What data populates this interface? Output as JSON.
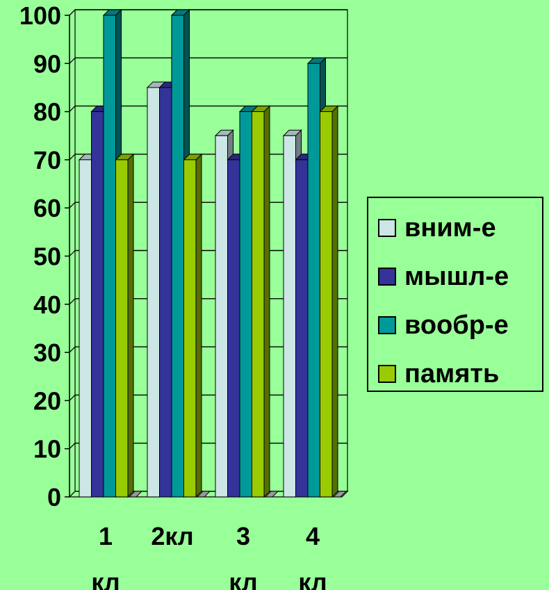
{
  "chart_data": {
    "type": "bar",
    "title": "",
    "xlabel": "",
    "ylabel": "",
    "ylim": [
      0,
      100
    ],
    "yticks": [
      "0",
      "10",
      "20",
      "30",
      "40",
      "50",
      "60",
      "70",
      "80",
      "90",
      "100"
    ],
    "categories": [
      [
        "1",
        "кл"
      ],
      [
        "2кл"
      ],
      [
        "3",
        "кл"
      ],
      [
        "4",
        "кл"
      ]
    ],
    "series": [
      {
        "name": "вним-е",
        "color": "#cce6e6",
        "values": [
          70,
          85,
          75,
          75
        ]
      },
      {
        "name": "мышл-е",
        "color": "#333399",
        "values": [
          80,
          85,
          70,
          70
        ]
      },
      {
        "name": "вообр-е",
        "color": "#009999",
        "values": [
          100,
          100,
          80,
          90
        ]
      },
      {
        "name": "память",
        "color": "#99cc00",
        "values": [
          70,
          70,
          80,
          80
        ]
      }
    ],
    "grid": true,
    "legend_position": "right",
    "style": "3d-clustered-column"
  }
}
